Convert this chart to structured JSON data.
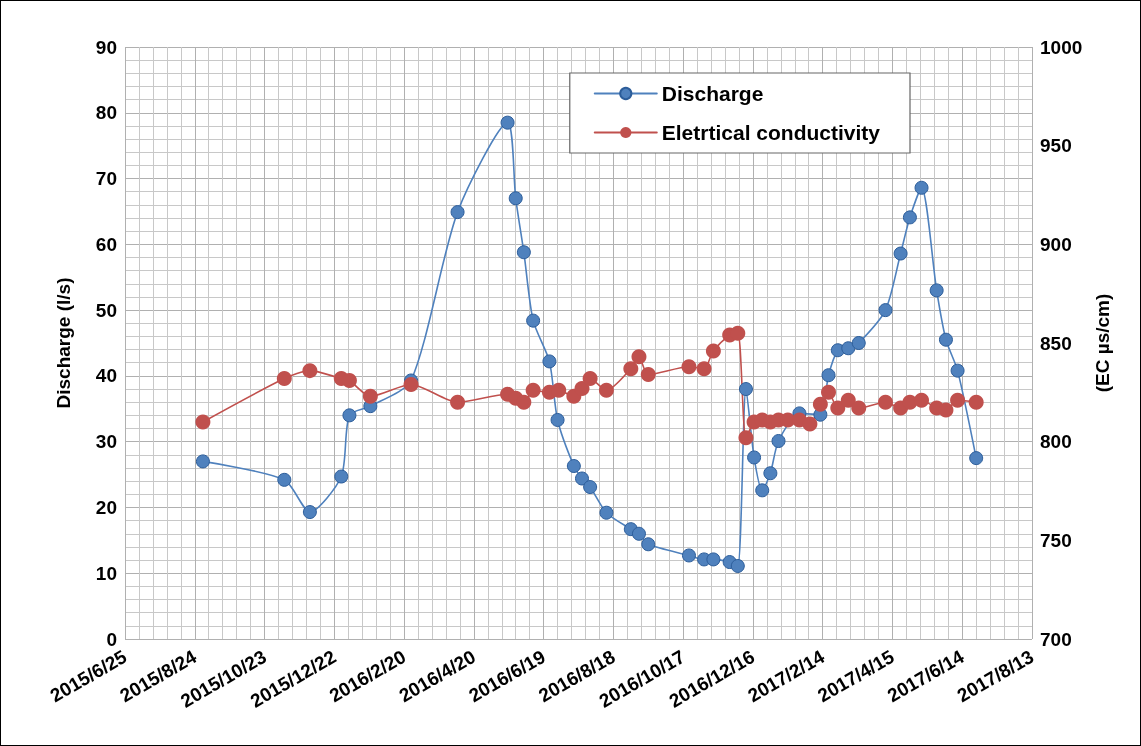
{
  "chart_data": {
    "type": "line",
    "xlabel": null,
    "ylabel": "Discharge (l/s)",
    "y2label": "(EC µs/cm)",
    "xlim": [
      "2015-06-25",
      "2017-08-13"
    ],
    "xticks": [
      {
        "value": "2015-06-25",
        "label": "2015/6/25"
      },
      {
        "value": "2015-08-24",
        "label": "2015/8/24"
      },
      {
        "value": "2015-10-23",
        "label": "2015/10/23"
      },
      {
        "value": "2015-12-22",
        "label": "2015/12/22"
      },
      {
        "value": "2016-02-20",
        "label": "2016/2/20"
      },
      {
        "value": "2016-04-20",
        "label": "2016/4/20"
      },
      {
        "value": "2016-06-19",
        "label": "2016/6/19"
      },
      {
        "value": "2016-08-18",
        "label": "2016/8/18"
      },
      {
        "value": "2016-10-17",
        "label": "2016/10/17"
      },
      {
        "value": "2016-12-16",
        "label": "2016/12/16"
      },
      {
        "value": "2017-02-14",
        "label": "2017/2/14"
      },
      {
        "value": "2017-04-15",
        "label": "2017/4/15"
      },
      {
        "value": "2017-06-14",
        "label": "2017/6/14"
      },
      {
        "value": "2017-08-13",
        "label": "2017/8/13"
      }
    ],
    "ylim": [
      0,
      90
    ],
    "yticks": [
      0,
      10,
      20,
      30,
      40,
      50,
      60,
      70,
      80,
      90
    ],
    "y2lim": [
      700,
      1000
    ],
    "y2ticks": [
      700,
      750,
      800,
      850,
      900,
      950,
      1000
    ],
    "grid": true,
    "legend": "top right",
    "marker": "circle",
    "line_style": "solid",
    "series": [
      {
        "name": "Discharge",
        "color": "#4f81bd",
        "x": [
          "2015-08-31",
          "2015-11-09",
          "2015-12-01",
          "2015-12-28",
          "2016-01-04",
          "2016-01-22",
          "2016-02-26",
          "2016-04-06",
          "2016-05-19",
          "2016-05-26",
          "2016-06-02",
          "2016-06-10",
          "2016-06-24",
          "2016-07-01",
          "2016-07-15",
          "2016-07-22",
          "2016-07-29",
          "2016-08-12",
          "2016-09-02",
          "2016-09-09",
          "2016-09-17",
          "2016-10-22",
          "2016-11-04",
          "2016-11-12",
          "2016-11-26",
          "2016-12-03",
          "2016-12-10",
          "2016-12-17",
          "2016-12-24",
          "2016-12-31",
          "2017-01-07",
          "2017-01-25",
          "2017-02-12",
          "2017-02-19",
          "2017-02-27",
          "2017-03-08",
          "2017-03-17",
          "2017-04-09",
          "2017-04-22",
          "2017-04-30",
          "2017-05-10",
          "2017-05-23",
          "2017-05-31",
          "2017-06-10",
          "2017-06-26"
        ],
        "values": [
          27,
          24.2,
          19.3,
          24.7,
          34,
          35.4,
          39.3,
          64.9,
          78.5,
          67,
          58.8,
          48.4,
          42.2,
          33.3,
          26.3,
          24.4,
          23.1,
          19.2,
          16.7,
          16,
          14.4,
          12.7,
          12.1,
          12.1,
          11.7,
          11.1,
          38,
          27.6,
          22.6,
          25.2,
          30.1,
          34.3,
          34.1,
          40.1,
          43.9,
          44.2,
          45,
          50,
          58.6,
          64.1,
          68.6,
          53,
          45.5,
          40.8,
          27.5
        ]
      },
      {
        "name": "Eletrtical conductivity",
        "color": "#c0504d",
        "axis": "y2",
        "x": [
          "2015-08-31",
          "2015-11-09",
          "2015-12-01",
          "2015-12-28",
          "2016-01-04",
          "2016-01-22",
          "2016-02-26",
          "2016-04-06",
          "2016-05-19",
          "2016-05-26",
          "2016-06-02",
          "2016-06-10",
          "2016-06-24",
          "2016-07-02",
          "2016-07-15",
          "2016-07-22",
          "2016-07-29",
          "2016-08-12",
          "2016-09-02",
          "2016-09-09",
          "2016-09-17",
          "2016-10-22",
          "2016-11-04",
          "2016-11-12",
          "2016-11-26",
          "2016-12-03",
          "2016-12-10",
          "2016-12-17",
          "2016-12-24",
          "2016-12-31",
          "2017-01-07",
          "2017-01-15",
          "2017-01-25",
          "2017-02-03",
          "2017-02-12",
          "2017-02-19",
          "2017-02-27",
          "2017-03-08",
          "2017-03-17",
          "2017-04-09",
          "2017-04-22",
          "2017-04-30",
          "2017-05-10",
          "2017-05-23",
          "2017-05-31",
          "2017-06-10",
          "2017-06-26"
        ],
        "values": [
          810,
          832,
          836,
          832,
          831,
          823,
          829,
          820,
          824,
          822,
          820,
          826,
          825,
          826,
          823,
          827,
          832,
          826,
          837,
          843,
          834,
          838,
          837,
          846,
          854,
          855,
          802,
          810,
          811,
          810,
          811,
          811,
          811,
          809,
          819,
          825,
          817,
          821,
          817,
          820,
          817,
          820,
          821,
          817,
          816,
          821,
          820
        ]
      }
    ]
  }
}
